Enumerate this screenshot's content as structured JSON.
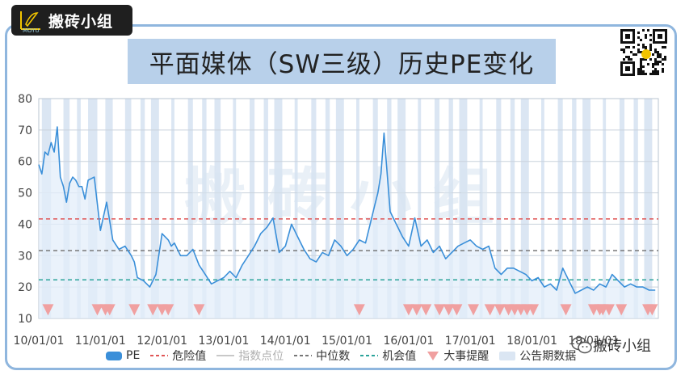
{
  "header": {
    "logo_text": "搬砖小组",
    "logo_sub": "MOYU",
    "title": "平面媒体（SW三级）历史PE变化",
    "watermark": "搬 砖 小 组",
    "wechat_label": "搬砖小组"
  },
  "colors": {
    "pe": "#3a8fd9",
    "danger": "#e05555",
    "median": "#777777",
    "opportunity": "#2aa39a",
    "event": "#f0a0a0",
    "announce": "#dbe6f3",
    "area": "#e3eef9"
  },
  "chart_data": {
    "type": "line",
    "title": "平面媒体（SW三级）历史PE变化",
    "xlabel": "",
    "ylabel": "",
    "ylim": [
      10,
      80
    ],
    "yticks": [
      10,
      20,
      30,
      40,
      50,
      60,
      70,
      80
    ],
    "xlim": [
      2010.0,
      2020.05
    ],
    "xticks": [
      {
        "x": 2010.0,
        "label": "10/01/01"
      },
      {
        "x": 2011.0,
        "label": "11/01/01"
      },
      {
        "x": 2012.0,
        "label": "12/01/01"
      },
      {
        "x": 2013.0,
        "label": "13/01/01"
      },
      {
        "x": 2014.0,
        "label": "14/01/01"
      },
      {
        "x": 2015.0,
        "label": "15/01/01"
      },
      {
        "x": 2016.0,
        "label": "16/01/01"
      },
      {
        "x": 2017.0,
        "label": "17/01/01"
      },
      {
        "x": 2018.0,
        "label": "18/01/01"
      },
      {
        "x": 2019.0,
        "label": "19/01/01"
      }
    ],
    "grid": true,
    "legend_position": "bottom",
    "reference_lines": [
      {
        "name": "危险值",
        "value": 41.7,
        "style": "dashed"
      },
      {
        "name": "中位数",
        "value": 31.6,
        "style": "dashed"
      },
      {
        "name": "机会值",
        "value": 22.3,
        "style": "dashed"
      }
    ],
    "series": [
      {
        "name": "PE",
        "x": [
          2010.0,
          2010.05,
          2010.1,
          2010.15,
          2010.2,
          2010.25,
          2010.3,
          2010.35,
          2010.4,
          2010.45,
          2010.5,
          2010.55,
          2010.6,
          2010.65,
          2010.7,
          2010.75,
          2010.8,
          2010.9,
          2011.0,
          2011.1,
          2011.2,
          2011.3,
          2011.4,
          2011.5,
          2011.55,
          2011.6,
          2011.7,
          2011.8,
          2011.9,
          2012.0,
          2012.1,
          2012.15,
          2012.2,
          2012.3,
          2012.4,
          2012.5,
          2012.6,
          2012.7,
          2012.8,
          2012.9,
          2013.0,
          2013.1,
          2013.2,
          2013.3,
          2013.4,
          2013.5,
          2013.6,
          2013.7,
          2013.8,
          2013.9,
          2014.0,
          2014.1,
          2014.2,
          2014.3,
          2014.4,
          2014.5,
          2014.6,
          2014.7,
          2014.8,
          2014.9,
          2015.0,
          2015.1,
          2015.2,
          2015.3,
          2015.35,
          2015.4,
          2015.45,
          2015.5,
          2015.55,
          2015.6,
          2015.7,
          2015.8,
          2015.9,
          2016.0,
          2016.1,
          2016.2,
          2016.3,
          2016.4,
          2016.5,
          2016.6,
          2016.7,
          2016.8,
          2016.9,
          2017.0,
          2017.1,
          2017.2,
          2017.3,
          2017.4,
          2017.5,
          2017.6,
          2017.7,
          2017.8,
          2017.9,
          2018.0,
          2018.1,
          2018.2,
          2018.3,
          2018.4,
          2018.5,
          2018.6,
          2018.7,
          2018.8,
          2018.9,
          2019.0,
          2019.1,
          2019.2,
          2019.3,
          2019.4,
          2019.5,
          2019.6,
          2019.7,
          2019.8,
          2019.9,
          2020.0
        ],
        "values": [
          59,
          56,
          63,
          62,
          66,
          63,
          71,
          55,
          52,
          47,
          53,
          55,
          54,
          52,
          52,
          48,
          54,
          55,
          38,
          47,
          35,
          32,
          33,
          30,
          28,
          23,
          22,
          20,
          24,
          37,
          35,
          33,
          34,
          30,
          30,
          32,
          27,
          24,
          21,
          22,
          23,
          25,
          23,
          27,
          30,
          33,
          37,
          39,
          42,
          31,
          33,
          40,
          36,
          32,
          29,
          28,
          31,
          30,
          35,
          33,
          30,
          32,
          35,
          34,
          38,
          42,
          46,
          50,
          56,
          69,
          44,
          40,
          36,
          33,
          42,
          33,
          35,
          31,
          33,
          29,
          31,
          33,
          34,
          35,
          33,
          32,
          33,
          26,
          24,
          26,
          26,
          25,
          24,
          22,
          23,
          20,
          21,
          19,
          26,
          22,
          18,
          19,
          20,
          19,
          21,
          20,
          24,
          22,
          20,
          21,
          20,
          20,
          19,
          19
        ]
      }
    ],
    "event_markers": [
      2010.15,
      2010.95,
      2011.08,
      2011.15,
      2011.55,
      2011.85,
      2012.0,
      2012.1,
      2012.6,
      2015.2,
      2016.0,
      2016.13,
      2016.28,
      2016.5,
      2016.65,
      2016.78,
      2017.05,
      2017.32,
      2017.48,
      2017.62,
      2017.72,
      2017.82,
      2017.92,
      2018.02,
      2018.55,
      2019.0,
      2019.1,
      2019.15,
      2019.25,
      2019.45,
      2019.88,
      2019.95
    ],
    "announcement_periods": [
      [
        2010.05,
        2010.2
      ],
      [
        2010.4,
        2010.5
      ],
      [
        2010.62,
        2010.68
      ],
      [
        2010.8,
        2010.95
      ],
      [
        2011.08,
        2011.2
      ],
      [
        2011.4,
        2011.5
      ],
      [
        2011.65,
        2011.72
      ],
      [
        2011.82,
        2011.95
      ],
      [
        2012.15,
        2012.2
      ],
      [
        2012.42,
        2012.5
      ],
      [
        2012.65,
        2012.72
      ],
      [
        2012.85,
        2012.95
      ],
      [
        2013.15,
        2013.2
      ],
      [
        2013.42,
        2013.5
      ],
      [
        2013.65,
        2013.72
      ],
      [
        2013.82,
        2013.95
      ],
      [
        2014.15,
        2014.2
      ],
      [
        2014.42,
        2014.5
      ],
      [
        2014.65,
        2014.72
      ],
      [
        2014.82,
        2014.95
      ],
      [
        2015.15,
        2015.2
      ],
      [
        2015.42,
        2015.5
      ],
      [
        2015.65,
        2015.72
      ],
      [
        2015.82,
        2015.95
      ],
      [
        2016.15,
        2016.2
      ],
      [
        2016.42,
        2016.5
      ],
      [
        2016.65,
        2016.72
      ],
      [
        2016.82,
        2016.95
      ],
      [
        2017.15,
        2017.2
      ],
      [
        2017.42,
        2017.5
      ],
      [
        2017.65,
        2017.72
      ],
      [
        2017.82,
        2017.95
      ],
      [
        2018.15,
        2018.2
      ],
      [
        2018.42,
        2018.5
      ],
      [
        2018.65,
        2018.72
      ],
      [
        2018.82,
        2018.95
      ],
      [
        2019.15,
        2019.2
      ],
      [
        2019.42,
        2019.5
      ],
      [
        2019.65,
        2019.72
      ],
      [
        2019.82,
        2019.95
      ]
    ],
    "legend": [
      "PE",
      "危险值",
      "指数点位",
      "中位数",
      "机会值",
      "大事提醒",
      "公告期数据"
    ]
  }
}
